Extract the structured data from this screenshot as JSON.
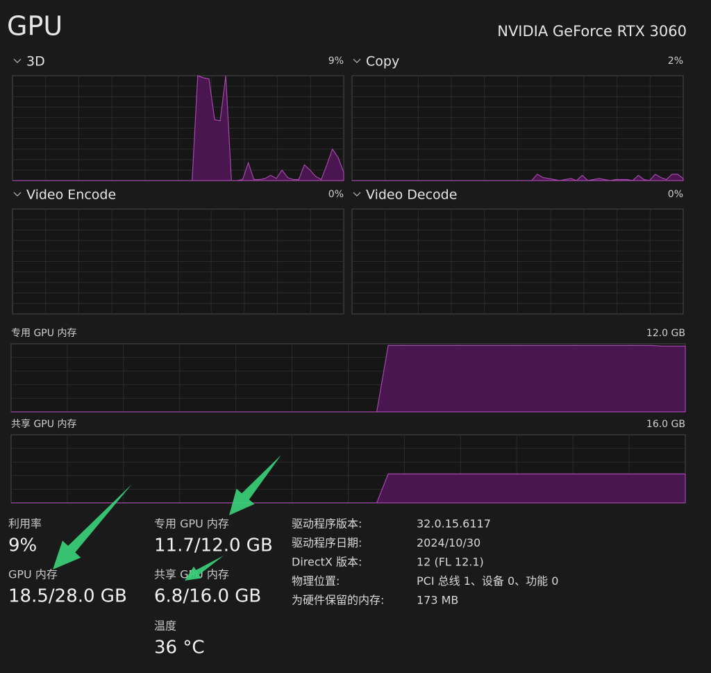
{
  "header": {
    "title": "GPU",
    "device": "NVIDIA GeForce RTX 3060"
  },
  "graphs": [
    {
      "label": "3D",
      "value_label": "9%",
      "ylim": [
        0,
        100
      ],
      "values": [
        0,
        0,
        0,
        0,
        0,
        0,
        0,
        0,
        0,
        0,
        0,
        0,
        0,
        0,
        0,
        0,
        0,
        0,
        0,
        0,
        0,
        0,
        0,
        0,
        0,
        0,
        0,
        0,
        0,
        0,
        0,
        0,
        0,
        100,
        98,
        97,
        58,
        57,
        100,
        0,
        0,
        1,
        17,
        1,
        1,
        2,
        5,
        2,
        10,
        3,
        1,
        1,
        15,
        10,
        4,
        1,
        15,
        30,
        22,
        8
      ]
    },
    {
      "label": "Copy",
      "value_label": "2%",
      "ylim": [
        0,
        100
      ],
      "values": [
        0,
        0,
        0,
        0,
        0,
        0,
        0,
        0,
        0,
        0,
        0,
        0,
        0,
        0,
        0,
        0,
        0,
        0,
        0,
        0,
        0,
        0,
        0,
        0,
        0,
        0,
        0,
        0,
        0,
        0,
        0,
        0,
        0,
        6,
        3,
        2,
        1,
        0,
        1,
        2,
        0,
        5,
        0,
        1,
        2,
        1,
        0,
        1,
        1,
        1,
        0,
        5,
        1,
        0,
        6,
        3,
        1,
        6,
        6,
        2
      ]
    },
    {
      "label": "Video Encode",
      "value_label": "0%"
    },
    {
      "label": "Video Decode",
      "value_label": "0%"
    }
  ],
  "memory_graphs": [
    {
      "label": "专用 GPU 内存",
      "max_label": "12.0 GB",
      "ylim": [
        0,
        12
      ],
      "values": [
        0,
        0,
        0,
        0,
        0,
        0,
        0,
        0,
        0,
        0,
        0,
        0,
        0,
        0,
        0,
        0,
        0,
        0,
        0,
        0,
        0,
        0,
        0,
        0,
        0,
        0,
        0,
        0,
        0,
        0,
        0,
        0,
        0,
        11.7,
        11.7,
        11.7,
        11.7,
        11.7,
        11.7,
        11.7,
        11.7,
        11.7,
        11.7,
        11.7,
        11.7,
        11.7,
        11.7,
        11.7,
        11.7,
        11.7,
        11.7,
        11.7,
        11.7,
        11.7,
        11.7,
        11.7,
        11.7,
        11.6,
        11.6,
        11.6
      ]
    },
    {
      "label": "共享 GPU 内存",
      "max_label": "16.0 GB",
      "ylim": [
        0,
        16
      ],
      "values": [
        0,
        0,
        0,
        0,
        0,
        0,
        0,
        0,
        0,
        0,
        0,
        0,
        0,
        0,
        0,
        0,
        0,
        0,
        0,
        0,
        0,
        0,
        0,
        0,
        0,
        0,
        0,
        0,
        0,
        0,
        0,
        0,
        0,
        6.8,
        6.8,
        6.8,
        6.8,
        6.8,
        6.8,
        6.8,
        6.8,
        6.8,
        6.8,
        6.8,
        6.8,
        6.8,
        6.8,
        6.8,
        6.8,
        6.8,
        6.8,
        6.8,
        6.8,
        6.8,
        6.8,
        6.8,
        6.8,
        6.8,
        6.8,
        6.8
      ]
    }
  ],
  "stats": [
    {
      "label": "利用率",
      "value": "9%"
    },
    {
      "label": "GPU 内存",
      "value": "18.5/28.0 GB"
    },
    {
      "label": "专用 GPU 内存",
      "value": "11.7/12.0 GB"
    },
    {
      "label": "共享 GPU 内存",
      "value": "6.8/16.0 GB"
    },
    {
      "label": "温度",
      "value": "36 °C"
    }
  ],
  "details": [
    {
      "label": "驱动程序版本:",
      "value": "32.0.15.6117"
    },
    {
      "label": "驱动程序日期:",
      "value": "2024/10/30"
    },
    {
      "label": "DirectX 版本:",
      "value": "12 (FL 12.1)"
    },
    {
      "label": "物理位置:",
      "value": "PCI 总线 1、设备 0、功能 0"
    },
    {
      "label": "为硬件保留的内存:",
      "value": "173 MB"
    }
  ]
}
